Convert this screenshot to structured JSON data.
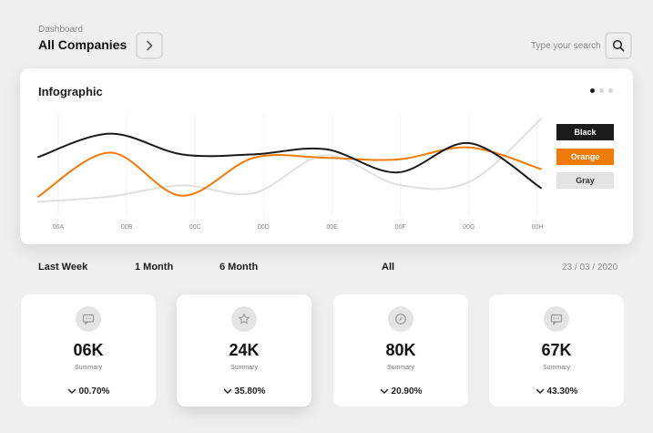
{
  "header": {
    "subtitle": "Dashboard",
    "title": "All Companies",
    "nav_icon": "chevron-right-icon",
    "search_placeholder": "Type your search",
    "search_icon": "search-icon"
  },
  "infographic": {
    "title": "Infographic",
    "page_dots": 3,
    "active_dot": 0,
    "legend": [
      {
        "label": "Black",
        "bg": "#1b1b1b",
        "fg": "#ffffff"
      },
      {
        "label": "Orange",
        "bg": "#f07a0a",
        "fg": "#ffffff"
      },
      {
        "label": "Gray",
        "bg": "#e3e3e3",
        "fg": "#333333"
      }
    ]
  },
  "chart_data": {
    "type": "line",
    "x": [
      "00A",
      "00B",
      "00C",
      "00D",
      "00E",
      "00F",
      "00G",
      "00H"
    ],
    "series": [
      {
        "name": "Black",
        "color": "#1b1b1b",
        "values": [
          48,
          75,
          51,
          51,
          57,
          30,
          64,
          12
        ]
      },
      {
        "name": "Orange",
        "color": "#f07a0a",
        "values": [
          2,
          53,
          3,
          47,
          47,
          45,
          59,
          34
        ]
      },
      {
        "name": "Gray",
        "color": "#e0e0e0",
        "values": [
          -4,
          2,
          15,
          6,
          50,
          16,
          19,
          92
        ]
      }
    ],
    "ylim": [
      -10,
      100
    ],
    "grid": "vertical",
    "legend_position": "right"
  },
  "filters": {
    "items": [
      "Last Week",
      "1 Month",
      "6 Month",
      "All"
    ],
    "date": "23 / 03 / 2020"
  },
  "stats": [
    {
      "icon": "chat-icon",
      "value": "06K",
      "label": "Summary",
      "change": "00.70%",
      "highlight": false
    },
    {
      "icon": "star-icon",
      "value": "24K",
      "label": "Summary",
      "change": "35.80%",
      "highlight": true
    },
    {
      "icon": "compass-icon",
      "value": "80K",
      "label": "Summary",
      "change": "20.90%",
      "highlight": false
    },
    {
      "icon": "chat-icon",
      "value": "67K",
      "label": "Summary",
      "change": "43.30%",
      "highlight": false
    }
  ]
}
